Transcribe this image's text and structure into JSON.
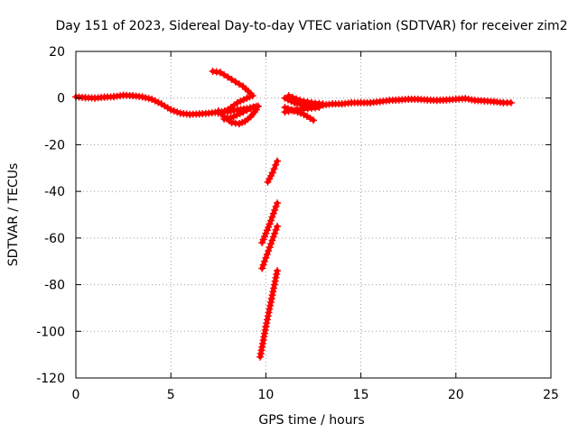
{
  "chart_data": {
    "type": "scatter",
    "title": "Day 151 of 2023, Sidereal Day-to-day VTEC variation (SDTVAR) for receiver zim2",
    "xlabel": "GPS time / hours",
    "ylabel": "SDTVAR / TECUs",
    "xlim": [
      0,
      25
    ],
    "ylim": [
      -120,
      20
    ],
    "xticks": [
      0,
      5,
      10,
      15,
      20,
      25
    ],
    "yticks": [
      -120,
      -100,
      -80,
      -60,
      -40,
      -20,
      0,
      20
    ],
    "grid": true,
    "legend": "none",
    "series": [
      {
        "name": "main-trace-early",
        "points": [
          [
            0.0,
            0.5
          ],
          [
            0.5,
            0.2
          ],
          [
            1.0,
            0.0
          ],
          [
            1.5,
            0.4
          ],
          [
            2.0,
            0.6
          ],
          [
            2.5,
            1.2
          ],
          [
            3.0,
            1.0
          ],
          [
            3.5,
            0.5
          ],
          [
            4.0,
            -0.5
          ],
          [
            4.5,
            -2.5
          ],
          [
            5.0,
            -5.0
          ],
          [
            5.5,
            -6.5
          ],
          [
            6.0,
            -7.0
          ],
          [
            6.5,
            -6.8
          ],
          [
            7.0,
            -6.5
          ],
          [
            7.5,
            -6.0
          ],
          [
            8.0,
            -5.8
          ],
          [
            8.5,
            -5.0
          ],
          [
            9.0,
            -4.5
          ],
          [
            9.5,
            -3.5
          ]
        ]
      },
      {
        "name": "arc-upper",
        "points": [
          [
            7.2,
            11.5
          ],
          [
            7.6,
            11.0
          ],
          [
            8.0,
            9.0
          ],
          [
            8.4,
            7.0
          ],
          [
            8.8,
            5.0
          ],
          [
            9.2,
            2.0
          ]
        ]
      },
      {
        "name": "arc-lower",
        "points": [
          [
            7.5,
            -6.5
          ],
          [
            8.0,
            -5.0
          ],
          [
            8.5,
            -2.0
          ],
          [
            9.0,
            0.0
          ],
          [
            9.3,
            1.0
          ]
        ]
      },
      {
        "name": "arc-dip",
        "points": [
          [
            7.5,
            -5.5
          ],
          [
            7.8,
            -8.0
          ],
          [
            8.2,
            -10.5
          ],
          [
            8.6,
            -11.0
          ],
          [
            8.9,
            -10.0
          ],
          [
            9.2,
            -8.0
          ],
          [
            9.5,
            -5.0
          ]
        ]
      },
      {
        "name": "arc-cross",
        "points": [
          [
            7.8,
            -9.0
          ],
          [
            8.3,
            -8.0
          ],
          [
            8.8,
            -6.0
          ],
          [
            9.2,
            -4.5
          ],
          [
            9.6,
            -3.5
          ]
        ]
      },
      {
        "name": "main-trace-late",
        "points": [
          [
            11.0,
            0.0
          ],
          [
            11.5,
            -2.0
          ],
          [
            12.0,
            -3.0
          ],
          [
            12.5,
            -3.5
          ],
          [
            13.0,
            -3.0
          ],
          [
            13.5,
            -2.5
          ],
          [
            14.0,
            -2.5
          ],
          [
            14.5,
            -2.0
          ],
          [
            15.0,
            -2.0
          ],
          [
            15.5,
            -2.0
          ],
          [
            16.0,
            -1.5
          ],
          [
            16.5,
            -1.0
          ],
          [
            17.0,
            -0.8
          ],
          [
            17.5,
            -0.5
          ],
          [
            18.0,
            -0.5
          ],
          [
            18.5,
            -0.8
          ],
          [
            19.0,
            -1.0
          ],
          [
            19.5,
            -0.8
          ],
          [
            20.0,
            -0.5
          ],
          [
            20.5,
            -0.2
          ],
          [
            21.0,
            -1.0
          ],
          [
            21.5,
            -1.2
          ],
          [
            22.0,
            -1.5
          ],
          [
            22.5,
            -2.0
          ],
          [
            22.9,
            -2.0
          ]
        ]
      },
      {
        "name": "late-arc-a",
        "points": [
          [
            11.0,
            -4.0
          ],
          [
            11.5,
            -5.5
          ],
          [
            12.0,
            -7.0
          ],
          [
            12.5,
            -9.5
          ]
        ]
      },
      {
        "name": "late-arc-b",
        "points": [
          [
            11.0,
            -6.0
          ],
          [
            11.6,
            -5.0
          ],
          [
            12.2,
            -4.5
          ],
          [
            12.8,
            -4.0
          ]
        ]
      },
      {
        "name": "late-arc-c",
        "points": [
          [
            11.2,
            1.0
          ],
          [
            11.8,
            -1.0
          ],
          [
            12.4,
            -2.0
          ],
          [
            13.0,
            -2.5
          ]
        ]
      },
      {
        "name": "segment-a",
        "points": [
          [
            10.1,
            -36.0
          ],
          [
            10.35,
            -32.0
          ],
          [
            10.6,
            -27.0
          ]
        ]
      },
      {
        "name": "segment-b",
        "points": [
          [
            9.8,
            -62.0
          ],
          [
            10.2,
            -54.0
          ],
          [
            10.6,
            -45.0
          ]
        ]
      },
      {
        "name": "segment-c",
        "points": [
          [
            9.8,
            -73.0
          ],
          [
            10.2,
            -64.0
          ],
          [
            10.6,
            -55.0
          ]
        ]
      },
      {
        "name": "segment-d",
        "points": [
          [
            9.7,
            -111.0
          ],
          [
            10.0,
            -98.0
          ],
          [
            10.3,
            -86.0
          ],
          [
            10.6,
            -74.0
          ]
        ]
      }
    ]
  },
  "colors": {
    "marker": "#ff0000",
    "grid": "#a0a0a0",
    "axis": "#000000",
    "background": "#ffffff"
  }
}
